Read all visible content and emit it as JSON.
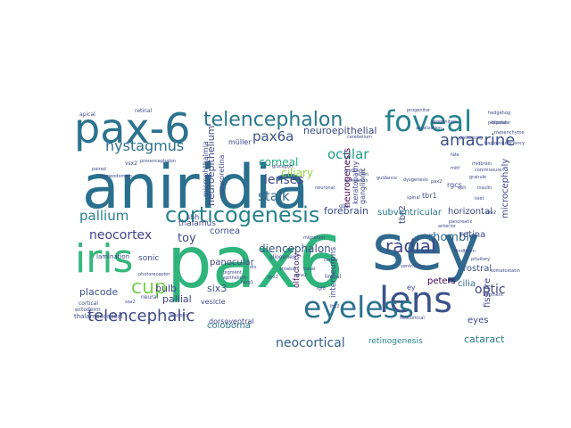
{
  "image_title": "",
  "words": [
    {
      "text": "aniridia",
      "color": "#2a6f8e"
    },
    {
      "text": "pax6",
      "color": "#2fb47c"
    },
    {
      "text": "sey",
      "color": "#31688e"
    },
    {
      "text": "pax-6",
      "color": "#2c728e"
    },
    {
      "text": "foveal",
      "color": "#25838e"
    },
    {
      "text": "iris",
      "color": "#35b779"
    },
    {
      "text": "lens",
      "color": "#3b528b"
    },
    {
      "text": "eyeless",
      "color": "#2c728e"
    },
    {
      "text": "telencephalon",
      "color": "#2a788e"
    },
    {
      "text": "corticogenesis",
      "color": "#26828e"
    },
    {
      "text": "nystagmus",
      "color": "#2c728e"
    },
    {
      "text": "amacrine",
      "color": "#3b528b"
    },
    {
      "text": "cup",
      "color": "#7ad151"
    },
    {
      "text": "telencephalic",
      "color": "#3e4989"
    },
    {
      "text": "radial",
      "color": "#3e4989"
    },
    {
      "text": "neocortical",
      "color": "#355f8d"
    },
    {
      "text": "neocortex",
      "color": "#414487"
    },
    {
      "text": "pallium",
      "color": "#27808e"
    },
    {
      "text": "pax6a",
      "color": "#3b528b"
    },
    {
      "text": "corneal",
      "color": "#22a884"
    },
    {
      "text": "ocular",
      "color": "#1f9e89"
    },
    {
      "text": "lenses",
      "color": "#3e4989"
    },
    {
      "text": "ciliary",
      "color": "#90d743"
    },
    {
      "text": "stalk",
      "color": "#31688e"
    },
    {
      "text": "diencephalon",
      "color": "#3b528b"
    },
    {
      "text": "optic",
      "color": "#414487"
    },
    {
      "text": "neuroepithelial",
      "color": "#3e4989"
    },
    {
      "text": "cataract",
      "color": "#2a788e"
    },
    {
      "text": "rhombic",
      "color": "#31688e"
    },
    {
      "text": "forebrain",
      "color": "#3e4989"
    },
    {
      "text": "retinogenesis",
      "color": "#26828e"
    },
    {
      "text": "coloboma",
      "color": "#2a788e"
    },
    {
      "text": "panocular",
      "color": "#414487"
    },
    {
      "text": "horizontal",
      "color": "#3e4989"
    },
    {
      "text": "subventricular",
      "color": "#2a788e"
    },
    {
      "text": "neuroepithelium",
      "color": "#3e4989"
    },
    {
      "text": "microcephaly",
      "color": "#3e4989"
    },
    {
      "text": "neurogenesis",
      "color": "#440154"
    },
    {
      "text": "rostral",
      "color": "#3b528b"
    },
    {
      "text": "toy",
      "color": "#3e4989"
    },
    {
      "text": "six3",
      "color": "#3b528b"
    },
    {
      "text": "peters",
      "color": "#440154"
    },
    {
      "text": "placode",
      "color": "#3b528b"
    },
    {
      "text": "bulb",
      "color": "#3e4989"
    },
    {
      "text": "pallial",
      "color": "#3e4989"
    },
    {
      "text": "eyes",
      "color": "#3e4989"
    },
    {
      "text": "cornea",
      "color": "#3b528b"
    },
    {
      "text": "cilia",
      "color": "#31688e"
    },
    {
      "text": "tbr2",
      "color": "#3e4989"
    },
    {
      "text": "olfactory",
      "color": "#482878"
    },
    {
      "text": "interneurons",
      "color": "#3e4989"
    },
    {
      "text": "fissure",
      "color": "#3e4989"
    },
    {
      "text": "retina",
      "color": "#3e4989"
    },
    {
      "text": "sonic",
      "color": "#3e4989"
    },
    {
      "text": "shh",
      "color": "#3e4989"
    },
    {
      "text": "thalamus",
      "color": "#3e4989"
    },
    {
      "text": "keratopathy",
      "color": "#3e4989"
    },
    {
      "text": "ganglionic",
      "color": "#3e4989"
    },
    {
      "text": "tbr1",
      "color": "#3e4989"
    },
    {
      "text": "rgcs",
      "color": "#3e4989"
    },
    {
      "text": "dorsoventral",
      "color": "#3e4989"
    },
    {
      "text": "vesicle",
      "color": "#3e4989"
    },
    {
      "text": "thalamocortical",
      "color": "#3e4989"
    },
    {
      "text": "lamination",
      "color": "#3e4989"
    },
    {
      "text": "microphthalmia",
      "color": "#3e4989"
    },
    {
      "text": "neuroretina",
      "color": "#3e4989"
    },
    {
      "text": "müller",
      "color": "#3e4989"
    },
    {
      "text": "ey",
      "color": "#3e4989"
    },
    {
      "text": "retinal",
      "color": "#3e4989"
    },
    {
      "text": "glial",
      "color": "#3e4989"
    },
    {
      "text": "cortical",
      "color": "#3e4989"
    },
    {
      "text": "neural",
      "color": "#3e4989"
    },
    {
      "text": "limbal",
      "color": "#3e4989"
    },
    {
      "text": "ectoderm",
      "color": "#3e4989"
    },
    {
      "text": "gliogenesis",
      "color": "#3e4989"
    },
    {
      "text": "glucagon",
      "color": "#3e4989"
    },
    {
      "text": "vsx2",
      "color": "#3e4989"
    },
    {
      "text": "progenitor",
      "color": "#3e4989"
    },
    {
      "text": "progenitors",
      "color": "#3e4989"
    },
    {
      "text": "sox2",
      "color": "#3e4989"
    },
    {
      "text": "neuronal",
      "color": "#3e4989"
    },
    {
      "text": "ventricular",
      "color": "#3e4989"
    },
    {
      "text": "pax2",
      "color": "#3e4989"
    },
    {
      "text": "mitf",
      "color": "#3e4989"
    },
    {
      "text": "otx2",
      "color": "#3e4989"
    },
    {
      "text": "pancreatic",
      "color": "#3e4989"
    },
    {
      "text": "islet",
      "color": "#3e4989"
    },
    {
      "text": "insulin",
      "color": "#3e4989"
    },
    {
      "text": "somatostatin",
      "color": "#3e4989"
    },
    {
      "text": "pituitary",
      "color": "#3e4989"
    },
    {
      "text": "cerebellum",
      "color": "#3e4989"
    },
    {
      "text": "granule",
      "color": "#3e4989"
    },
    {
      "text": "hindbrain",
      "color": "#3e4989"
    },
    {
      "text": "midbrain",
      "color": "#3e4989"
    },
    {
      "text": "spinal",
      "color": "#3e4989"
    },
    {
      "text": "axon",
      "color": "#3e4989"
    },
    {
      "text": "guidance",
      "color": "#3e4989"
    },
    {
      "text": "commissure",
      "color": "#3e4989"
    },
    {
      "text": "hedgehog",
      "color": "#3e4989"
    },
    {
      "text": "mesenchyme",
      "color": "#3e4989"
    },
    {
      "text": "periocular",
      "color": "#3e4989"
    },
    {
      "text": "anterior",
      "color": "#3e4989"
    },
    {
      "text": "segment",
      "color": "#3e4989"
    },
    {
      "text": "dysgenesis",
      "color": "#3e4989"
    },
    {
      "text": "haploinsufficiency",
      "color": "#3e4989"
    },
    {
      "text": "paired",
      "color": "#3e4989"
    },
    {
      "text": "homeodomain",
      "color": "#3e4989"
    },
    {
      "text": "enhancer",
      "color": "#3e4989"
    },
    {
      "text": "elongation",
      "color": "#3e4989"
    },
    {
      "text": "fate",
      "color": "#3e4989"
    },
    {
      "text": "arealization",
      "color": "#3e4989"
    },
    {
      "text": "patterning",
      "color": "#3e4989"
    },
    {
      "text": "eph",
      "color": "#3e4989"
    },
    {
      "text": "migration",
      "color": "#3e4989"
    },
    {
      "text": "cortex",
      "color": "#3e4989"
    },
    {
      "text": "neocortical",
      "color": "#3e4989"
    },
    {
      "text": "prosencephalon",
      "color": "#3e4989"
    },
    {
      "text": "bipolar",
      "color": "#3e4989"
    },
    {
      "text": "photoreceptor",
      "color": "#3e4989"
    },
    {
      "text": "pigment",
      "color": "#3e4989"
    },
    {
      "text": "epithelium",
      "color": "#3e4989"
    },
    {
      "text": "foxg1",
      "color": "#3e4989"
    },
    {
      "text": "emx2",
      "color": "#3e4989"
    },
    {
      "text": "fgf8",
      "color": "#3e4989"
    },
    {
      "text": "lhx2",
      "color": "#3e4989"
    },
    {
      "text": "dlx",
      "color": "#3e4989"
    },
    {
      "text": "gsx2",
      "color": "#3e4989"
    },
    {
      "text": "striatum",
      "color": "#3e4989"
    },
    {
      "text": "basal",
      "color": "#3e4989"
    },
    {
      "text": "apical",
      "color": "#3e4989"
    },
    {
      "text": "neurons",
      "color": "#3e4989"
    }
  ]
}
